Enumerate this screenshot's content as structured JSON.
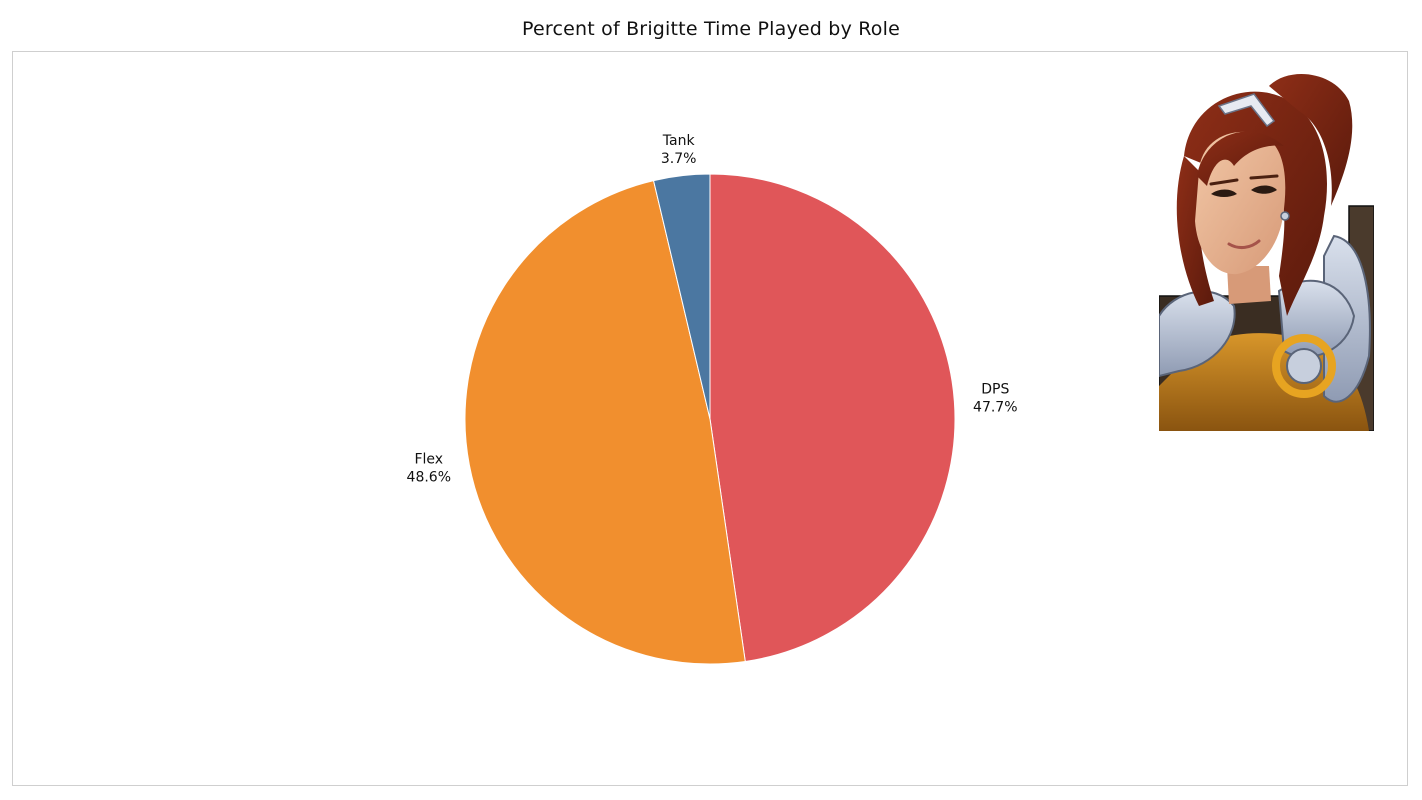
{
  "chart_data": {
    "type": "pie",
    "title": "Percent of Brigitte Time Played by Role",
    "slices": [
      {
        "label": "DPS",
        "value": 47.7,
        "display": "47.7%",
        "color": "#e05659"
      },
      {
        "label": "Flex",
        "value": 48.6,
        "display": "48.6%",
        "color": "#f18f2e"
      },
      {
        "label": "Tank",
        "value": 3.7,
        "display": "3.7%",
        "color": "#4b77a1"
      }
    ],
    "start_angle_deg": 0,
    "direction": "clockwise",
    "legend": "none",
    "colors": {
      "background": "#ffffff",
      "frame_border": "#cfcfcf",
      "slice_border": "#ffffff"
    }
  },
  "portrait": {
    "icon": "brigitte-portrait-icon"
  }
}
